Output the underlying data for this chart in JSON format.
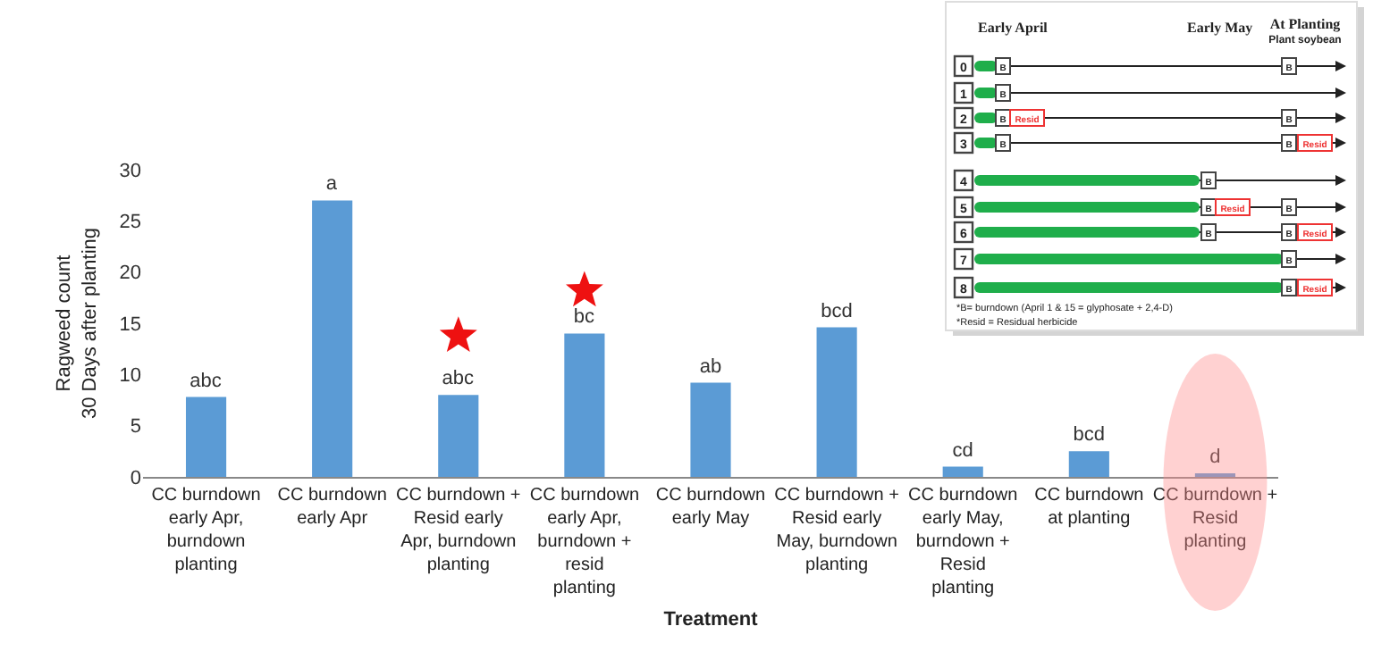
{
  "chart_data": {
    "type": "bar",
    "xlabel": "Treatment",
    "ylabel": "Ragweed count\n30 Days after planting",
    "categories": [
      "CC burndown early Apr, burndown planting",
      "CC burndown early Apr",
      "CC burndown + Resid early Apr, burndown planting",
      "CC burndown early Apr, burndown + resid planting",
      "CC burndown early May",
      "CC burndown + Resid early May, burndown planting",
      "CC burndown early May, burndown + Resid planting",
      "CC burndown at planting",
      "CC burndown + Resid planting"
    ],
    "values": [
      7.8,
      27,
      8.0,
      14,
      9.2,
      14.6,
      1.0,
      2.5,
      0.3
    ],
    "value_labels": [
      "abc",
      "a",
      "abc",
      "bc",
      "ab",
      "bcd",
      "cd",
      "bcd",
      "d"
    ],
    "color": "#5b9bd5",
    "ylim": [
      0,
      30
    ],
    "yticks": [
      0,
      5,
      10,
      15,
      20,
      25,
      30
    ],
    "grid": false,
    "annotations": [
      "Early April",
      "Early May",
      "At Planting",
      "Plant soybean",
      "0",
      "1",
      "2",
      "3",
      "4",
      "5",
      "6",
      "7",
      "8",
      "B",
      "Resid",
      "*B= burndown (April 1 & 15 = glyphosate + 2,4-D)",
      "*Resid = Residual herbicide"
    ]
  }
}
